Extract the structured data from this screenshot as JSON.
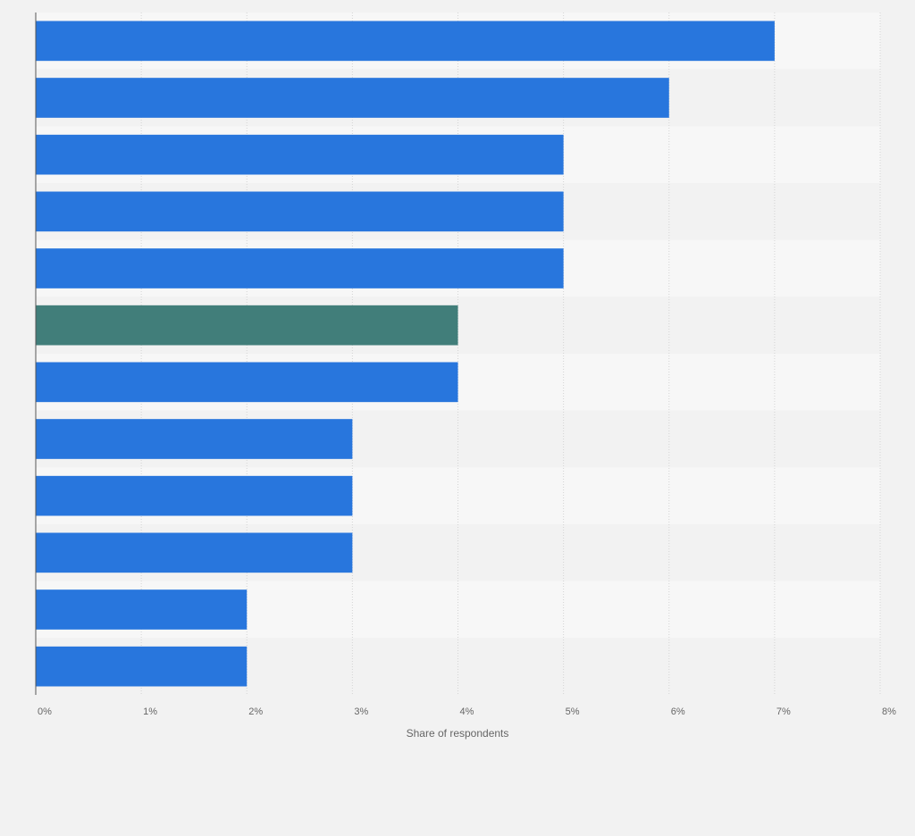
{
  "chart_data": {
    "type": "bar",
    "orientation": "horizontal",
    "values": [
      7,
      6,
      5,
      5,
      5,
      4,
      4,
      3,
      3,
      3,
      2,
      2
    ],
    "colors": [
      "#2876dd",
      "#2876dd",
      "#2876dd",
      "#2876dd",
      "#2876dd",
      "#417e7a",
      "#2876dd",
      "#2876dd",
      "#2876dd",
      "#2876dd",
      "#2876dd",
      "#2876dd"
    ],
    "xlim": [
      0,
      8
    ],
    "xticks": [
      {
        "value": 0,
        "label": "0%"
      },
      {
        "value": 1,
        "label": "1%"
      },
      {
        "value": 2,
        "label": "2%"
      },
      {
        "value": 3,
        "label": "3%"
      },
      {
        "value": 4,
        "label": "4%"
      },
      {
        "value": 5,
        "label": "5%"
      },
      {
        "value": 6,
        "label": "6%"
      },
      {
        "value": 7,
        "label": "7%"
      },
      {
        "value": 8,
        "label": "8%"
      }
    ],
    "x_label": "Share of respondents",
    "grid": true
  }
}
